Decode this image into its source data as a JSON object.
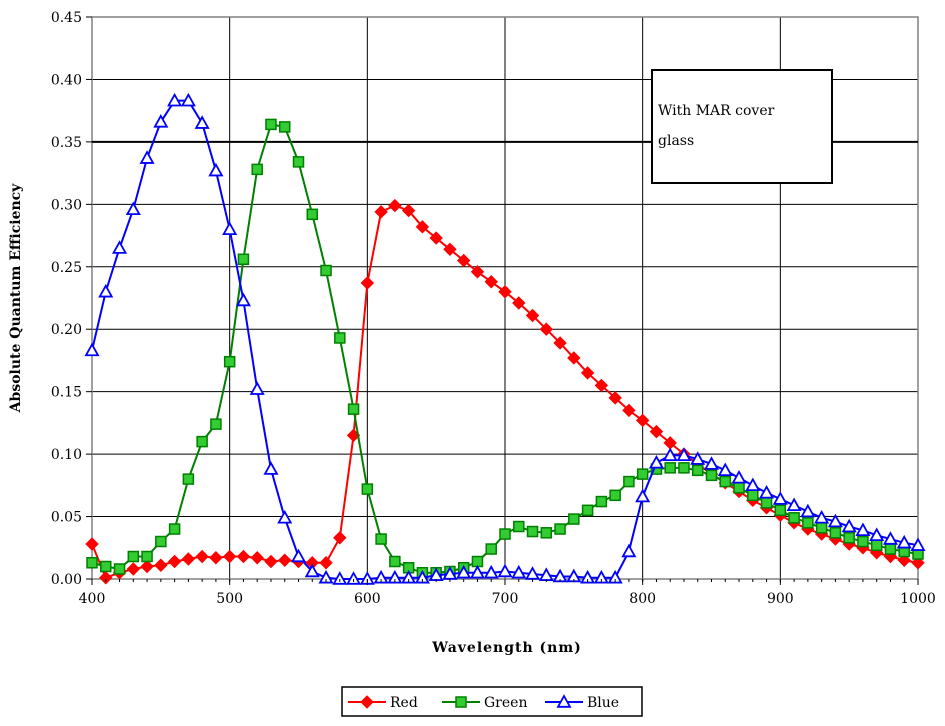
{
  "chart_data": {
    "type": "line",
    "title": "",
    "xlabel": "Wavelength (nm)",
    "ylabel": "Absolute Quantum Efficiency",
    "xlim": [
      400,
      1000
    ],
    "ylim": [
      0,
      0.45
    ],
    "x_ticks": [
      "400",
      "500",
      "600",
      "700",
      "800",
      "900",
      "1000"
    ],
    "y_ticks": [
      "0.00",
      "0.05",
      "0.10",
      "0.15",
      "0.20",
      "0.25",
      "0.30",
      "0.35",
      "0.40",
      "0.45"
    ],
    "grid": true,
    "legend_position": "bottom-center",
    "annotation": {
      "lines": [
        "With MAR cover",
        "glass"
      ]
    },
    "reference_line_y": 0.35,
    "series": [
      {
        "name": "Red",
        "color": "#ff0000",
        "marker": "diamond",
        "x": [
          400,
          410,
          420,
          430,
          440,
          450,
          460,
          470,
          480,
          490,
          500,
          510,
          520,
          530,
          540,
          550,
          560,
          570,
          580,
          590,
          600,
          610,
          620,
          630,
          640,
          650,
          660,
          670,
          680,
          690,
          700,
          710,
          720,
          730,
          740,
          750,
          760,
          770,
          780,
          790,
          800,
          810,
          820,
          830,
          840,
          850,
          860,
          870,
          880,
          890,
          900,
          910,
          920,
          930,
          940,
          950,
          960,
          970,
          980,
          990,
          1000
        ],
        "y": [
          0.028,
          0.001,
          0.005,
          0.008,
          0.01,
          0.011,
          0.014,
          0.016,
          0.018,
          0.017,
          0.018,
          0.018,
          0.017,
          0.014,
          0.015,
          0.014,
          0.013,
          0.013,
          0.033,
          0.115,
          0.237,
          0.294,
          0.299,
          0.295,
          0.282,
          0.273,
          0.264,
          0.255,
          0.246,
          0.238,
          0.23,
          0.221,
          0.211,
          0.2,
          0.189,
          0.177,
          0.165,
          0.155,
          0.145,
          0.135,
          0.127,
          0.118,
          0.109,
          0.1,
          0.092,
          0.084,
          0.077,
          0.07,
          0.063,
          0.057,
          0.051,
          0.045,
          0.04,
          0.036,
          0.032,
          0.028,
          0.025,
          0.021,
          0.018,
          0.015,
          0.013
        ]
      },
      {
        "name": "Green",
        "color": "#008000",
        "marker": "square",
        "x": [
          400,
          410,
          420,
          430,
          440,
          450,
          460,
          470,
          480,
          490,
          500,
          510,
          520,
          530,
          540,
          550,
          560,
          570,
          580,
          590,
          600,
          610,
          620,
          630,
          640,
          650,
          660,
          670,
          680,
          690,
          700,
          710,
          720,
          730,
          740,
          750,
          760,
          770,
          780,
          790,
          800,
          810,
          820,
          830,
          840,
          850,
          860,
          870,
          880,
          890,
          900,
          910,
          920,
          930,
          940,
          950,
          960,
          970,
          980,
          990,
          1000
        ],
        "y": [
          0.013,
          0.01,
          0.008,
          0.018,
          0.018,
          0.03,
          0.04,
          0.08,
          0.11,
          0.124,
          0.174,
          0.256,
          0.328,
          0.364,
          0.362,
          0.334,
          0.292,
          0.247,
          0.193,
          0.136,
          0.072,
          0.032,
          0.014,
          0.009,
          0.005,
          0.005,
          0.006,
          0.009,
          0.014,
          0.024,
          0.036,
          0.042,
          0.038,
          0.037,
          0.04,
          0.048,
          0.055,
          0.062,
          0.067,
          0.078,
          0.084,
          0.088,
          0.089,
          0.089,
          0.087,
          0.083,
          0.078,
          0.073,
          0.067,
          0.061,
          0.055,
          0.049,
          0.045,
          0.041,
          0.037,
          0.033,
          0.03,
          0.027,
          0.024,
          0.022,
          0.02
        ]
      },
      {
        "name": "Blue",
        "color": "#0000ff",
        "marker": "triangle",
        "x": [
          400,
          410,
          420,
          430,
          440,
          450,
          460,
          470,
          480,
          490,
          500,
          510,
          520,
          530,
          540,
          550,
          560,
          570,
          580,
          590,
          600,
          610,
          620,
          630,
          640,
          650,
          660,
          670,
          680,
          690,
          700,
          710,
          720,
          730,
          740,
          750,
          760,
          770,
          780,
          790,
          800,
          810,
          820,
          830,
          840,
          850,
          860,
          870,
          880,
          890,
          900,
          910,
          920,
          930,
          940,
          950,
          960,
          970,
          980,
          990,
          1000
        ],
        "y": [
          0.183,
          0.23,
          0.265,
          0.296,
          0.337,
          0.366,
          0.383,
          0.383,
          0.365,
          0.327,
          0.28,
          0.223,
          0.152,
          0.088,
          0.049,
          0.018,
          0.006,
          0.001,
          0.0,
          0.0,
          0.0,
          0.001,
          0.001,
          0.001,
          0.001,
          0.003,
          0.004,
          0.005,
          0.005,
          0.005,
          0.006,
          0.005,
          0.004,
          0.003,
          0.002,
          0.002,
          0.001,
          0.001,
          0.001,
          0.022,
          0.066,
          0.093,
          0.099,
          0.099,
          0.096,
          0.092,
          0.087,
          0.081,
          0.075,
          0.069,
          0.064,
          0.059,
          0.054,
          0.049,
          0.046,
          0.042,
          0.039,
          0.035,
          0.032,
          0.029,
          0.027
        ]
      }
    ]
  }
}
